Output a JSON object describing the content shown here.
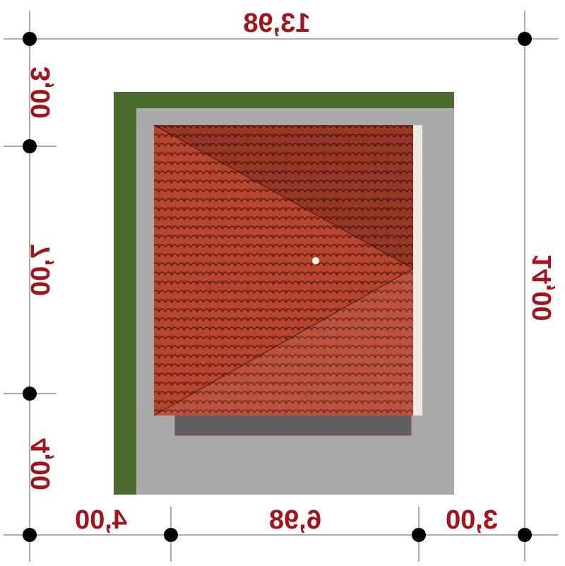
{
  "dimensions": {
    "top": "13,98",
    "right": "14,00",
    "left": [
      "3,00",
      "7,00",
      "4,00"
    ],
    "bottom": [
      "4,00",
      "6,98",
      "3,00"
    ]
  }
}
